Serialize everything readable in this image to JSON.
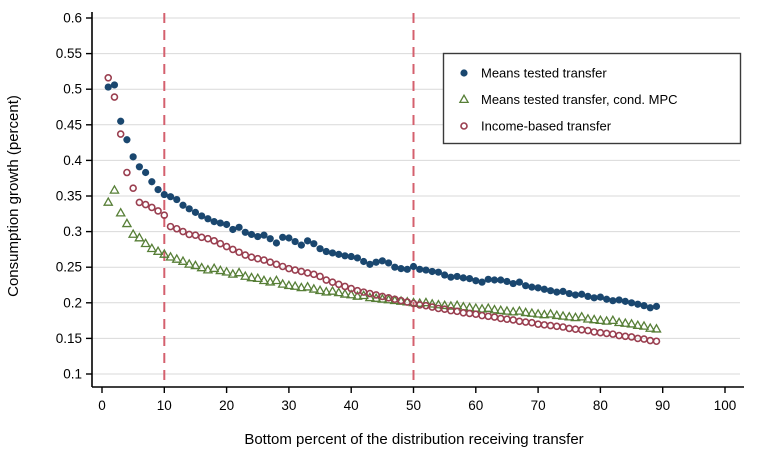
{
  "chart_data": {
    "type": "scatter",
    "title": "",
    "xlabel": "Bottom percent of the distribution receiving transfer",
    "ylabel": "Consumption growth (percent)",
    "xlim": [
      0,
      100
    ],
    "ylim": [
      0.1,
      0.6
    ],
    "grid": "horizontal",
    "grid_color": "#d9d9d9",
    "axis_color": "#000000",
    "legend_position": "top-right",
    "vlines": [
      10,
      50
    ],
    "vline_color": "#d4606e",
    "x_ticks": [
      {
        "value": 0,
        "label": "0"
      },
      {
        "value": 10,
        "label": "10"
      },
      {
        "value": 20,
        "label": "20"
      },
      {
        "value": 30,
        "label": "30"
      },
      {
        "value": 40,
        "label": "40"
      },
      {
        "value": 50,
        "label": "50"
      },
      {
        "value": 60,
        "label": "60"
      },
      {
        "value": 70,
        "label": "70"
      },
      {
        "value": 80,
        "label": "80"
      },
      {
        "value": 90,
        "label": "90"
      },
      {
        "value": 100,
        "label": "100"
      }
    ],
    "y_ticks": [
      {
        "value": 0.6,
        "label": "0.6"
      },
      {
        "value": 0.55,
        "label": "0.55"
      },
      {
        "value": 0.5,
        "label": "0.5"
      },
      {
        "value": 0.45,
        "label": "0.45"
      },
      {
        "value": 0.4,
        "label": "0.4"
      },
      {
        "value": 0.35,
        "label": "0.35"
      },
      {
        "value": 0.3,
        "label": "0.3"
      },
      {
        "value": 0.25,
        "label": "0.25"
      },
      {
        "value": 0.2,
        "label": "0.2"
      },
      {
        "value": 0.15,
        "label": "0.15"
      },
      {
        "value": 0.1,
        "label": "0.1"
      }
    ],
    "x_start": 1,
    "x_step": 1,
    "series": [
      {
        "name": "Means tested transfer",
        "marker": "filled-circle",
        "color": "#1a476f",
        "values": [
          0.503,
          0.506,
          0.455,
          0.429,
          0.405,
          0.391,
          0.383,
          0.37,
          0.359,
          0.352,
          0.349,
          0.345,
          0.337,
          0.332,
          0.327,
          0.322,
          0.318,
          0.314,
          0.312,
          0.31,
          0.303,
          0.306,
          0.299,
          0.296,
          0.293,
          0.295,
          0.29,
          0.284,
          0.292,
          0.291,
          0.286,
          0.281,
          0.287,
          0.283,
          0.276,
          0.272,
          0.27,
          0.268,
          0.266,
          0.265,
          0.263,
          0.258,
          0.254,
          0.257,
          0.259,
          0.256,
          0.25,
          0.248,
          0.247,
          0.251,
          0.247,
          0.246,
          0.244,
          0.243,
          0.239,
          0.236,
          0.237,
          0.235,
          0.234,
          0.231,
          0.229,
          0.233,
          0.232,
          0.232,
          0.23,
          0.227,
          0.229,
          0.224,
          0.222,
          0.221,
          0.219,
          0.217,
          0.215,
          0.216,
          0.213,
          0.211,
          0.212,
          0.209,
          0.207,
          0.208,
          0.205,
          0.203,
          0.204,
          0.202,
          0.2,
          0.198,
          0.196,
          0.193,
          0.195
        ]
      },
      {
        "name": "Means tested transfer, cond. MPC",
        "marker": "open-triangle",
        "color": "#577f37",
        "values": [
          0.341,
          0.358,
          0.326,
          0.311,
          0.296,
          0.291,
          0.283,
          0.276,
          0.272,
          0.268,
          0.264,
          0.261,
          0.258,
          0.254,
          0.252,
          0.249,
          0.246,
          0.248,
          0.245,
          0.243,
          0.24,
          0.242,
          0.237,
          0.235,
          0.234,
          0.231,
          0.229,
          0.231,
          0.226,
          0.224,
          0.223,
          0.221,
          0.222,
          0.219,
          0.217,
          0.215,
          0.216,
          0.214,
          0.212,
          0.211,
          0.209,
          0.21,
          0.207,
          0.206,
          0.205,
          0.204,
          0.203,
          0.202,
          0.201,
          0.2,
          0.199,
          0.2,
          0.198,
          0.197,
          0.196,
          0.195,
          0.196,
          0.194,
          0.193,
          0.192,
          0.191,
          0.192,
          0.19,
          0.189,
          0.188,
          0.187,
          0.188,
          0.186,
          0.185,
          0.184,
          0.183,
          0.184,
          0.182,
          0.181,
          0.18,
          0.179,
          0.18,
          0.177,
          0.176,
          0.175,
          0.174,
          0.175,
          0.172,
          0.171,
          0.17,
          0.168,
          0.167,
          0.164,
          0.163
        ]
      },
      {
        "name": "Income-based transfer",
        "marker": "open-circle",
        "color": "#9a3f50",
        "values": [
          0.516,
          0.489,
          0.437,
          0.383,
          0.361,
          0.341,
          0.338,
          0.334,
          0.329,
          0.323,
          0.307,
          0.304,
          0.3,
          0.296,
          0.295,
          0.292,
          0.29,
          0.287,
          0.283,
          0.279,
          0.275,
          0.271,
          0.267,
          0.264,
          0.262,
          0.26,
          0.257,
          0.254,
          0.251,
          0.248,
          0.246,
          0.244,
          0.242,
          0.24,
          0.237,
          0.232,
          0.229,
          0.226,
          0.223,
          0.22,
          0.217,
          0.215,
          0.213,
          0.211,
          0.209,
          0.207,
          0.205,
          0.203,
          0.201,
          0.199,
          0.197,
          0.196,
          0.194,
          0.192,
          0.191,
          0.189,
          0.188,
          0.186,
          0.185,
          0.184,
          0.182,
          0.181,
          0.18,
          0.178,
          0.177,
          0.176,
          0.174,
          0.173,
          0.172,
          0.17,
          0.169,
          0.168,
          0.167,
          0.166,
          0.164,
          0.163,
          0.162,
          0.161,
          0.159,
          0.158,
          0.157,
          0.156,
          0.154,
          0.153,
          0.152,
          0.15,
          0.149,
          0.147,
          0.146
        ]
      }
    ]
  }
}
